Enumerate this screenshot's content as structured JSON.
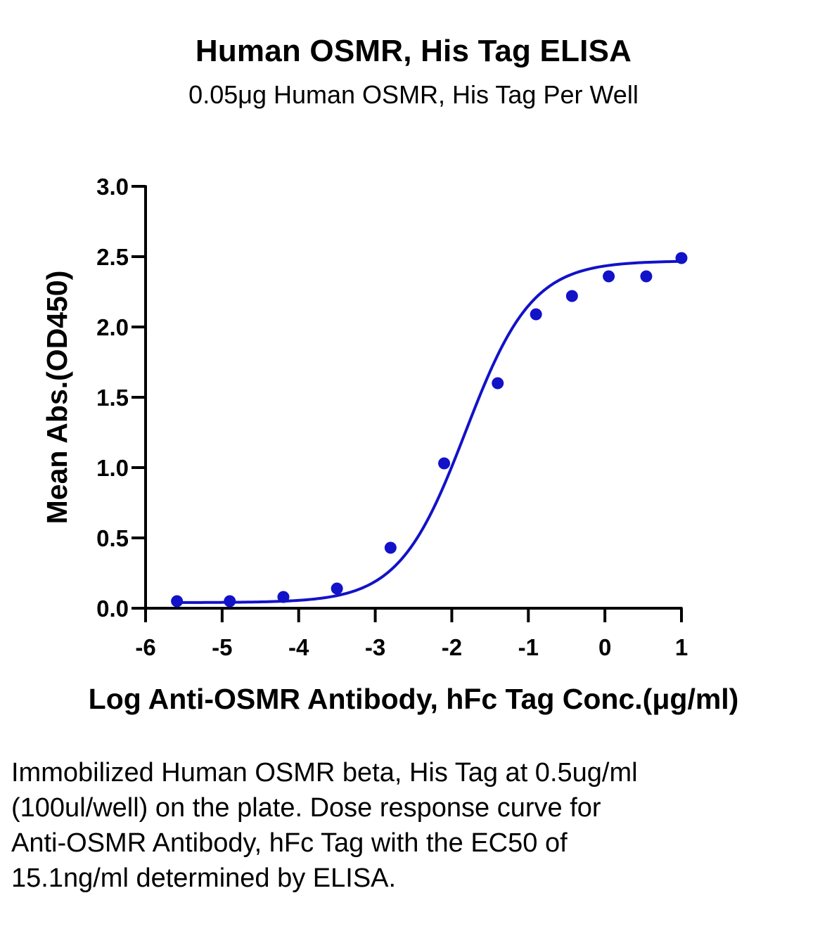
{
  "chart_data": {
    "type": "scatter",
    "title": "Human OSMR, His Tag ELISA",
    "subtitle": "0.05μg Human OSMR, His Tag Per Well",
    "xlabel": "Log Anti-OSMR Antibody, hFc Tag Conc.(μg/ml)",
    "ylabel": "Mean Abs.(OD450)",
    "xlim": [
      -6,
      1
    ],
    "ylim": [
      0,
      3.0
    ],
    "x_ticks": [
      -6,
      -5,
      -4,
      -3,
      -2,
      -1,
      0,
      1
    ],
    "x_tick_labels": [
      "-6",
      "-5",
      "-4",
      "-3",
      "-2",
      "-1",
      "0",
      "1"
    ],
    "y_ticks": [
      0,
      0.5,
      1.0,
      1.5,
      2.0,
      2.5,
      3.0
    ],
    "y_tick_labels": [
      "0.0",
      "0.5",
      "1.0",
      "1.5",
      "2.0",
      "2.5",
      "3.0"
    ],
    "grid": false,
    "series": [
      {
        "points": [
          {
            "x": -5.59,
            "y": 0.05
          },
          {
            "x": -4.9,
            "y": 0.05
          },
          {
            "x": -4.2,
            "y": 0.08
          },
          {
            "x": -3.5,
            "y": 0.14
          },
          {
            "x": -2.8,
            "y": 0.43
          },
          {
            "x": -2.1,
            "y": 1.03
          },
          {
            "x": -1.4,
            "y": 1.6
          },
          {
            "x": -0.9,
            "y": 2.09
          },
          {
            "x": -0.43,
            "y": 2.22
          },
          {
            "x": 0.05,
            "y": 2.36
          },
          {
            "x": 0.54,
            "y": 2.36
          },
          {
            "x": 1.0,
            "y": 2.49
          }
        ],
        "fit_curve": {
          "model": "4PL",
          "bottom": 0.04,
          "top": 2.47,
          "log_ec50": -1.82,
          "hill_slope": 1.0,
          "x_range": [
            -5.59,
            1.0
          ]
        }
      }
    ],
    "colors": {
      "series": "#1212c8",
      "axis": "#000000"
    }
  },
  "caption": "Immobilized Human OSMR beta, His Tag at 0.5ug/ml (100ul/well) on the plate. Dose response curve for Anti-OSMR Antibody, hFc Tag with the EC50 of 15.1ng/ml determined by ELISA."
}
